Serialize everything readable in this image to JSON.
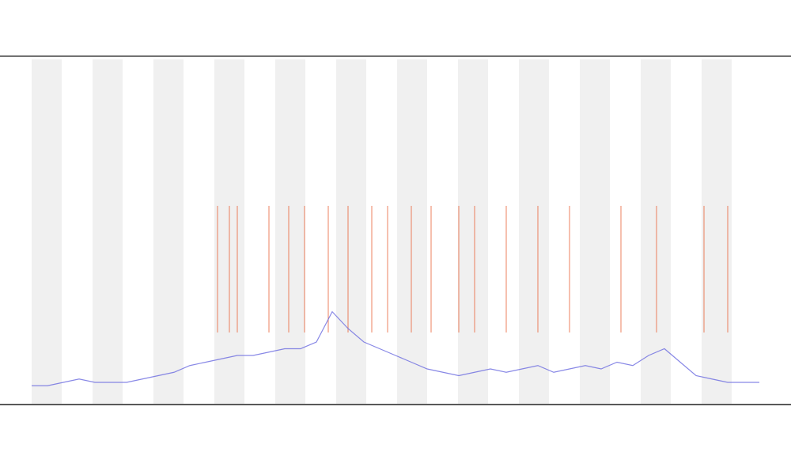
{
  "chart_data": {
    "type": "line",
    "x": [
      0,
      20,
      40,
      60,
      80,
      100,
      120,
      140,
      160,
      180,
      200,
      220,
      240,
      260,
      280,
      300,
      320,
      340,
      360,
      380,
      400,
      420,
      440,
      460,
      480,
      500,
      520,
      540,
      560,
      580,
      600,
      620,
      640,
      660,
      680,
      700,
      720,
      740,
      760,
      780,
      800,
      820,
      840,
      860,
      880,
      900,
      920
    ],
    "series": [
      {
        "color": "#6a6ae0",
        "values": [
          3,
          3,
          4,
          5,
          4,
          4,
          4,
          5,
          6,
          7,
          9,
          10,
          11,
          12,
          12,
          13,
          14,
          14,
          16,
          25,
          20,
          16,
          14,
          12,
          10,
          8,
          7,
          6,
          7,
          8,
          7,
          8,
          9,
          7,
          8,
          9,
          8,
          10,
          9,
          12,
          14,
          10,
          6,
          5,
          4,
          4,
          4
        ]
      }
    ],
    "events": [
      235,
      250,
      260,
      300,
      325,
      345,
      375,
      400,
      430,
      450,
      480,
      505,
      540,
      560,
      600,
      640,
      680,
      745,
      790,
      850,
      880
    ],
    "event_color": "#e8582a",
    "xlim": [
      0,
      920
    ],
    "ylim": [
      0,
      100
    ]
  }
}
